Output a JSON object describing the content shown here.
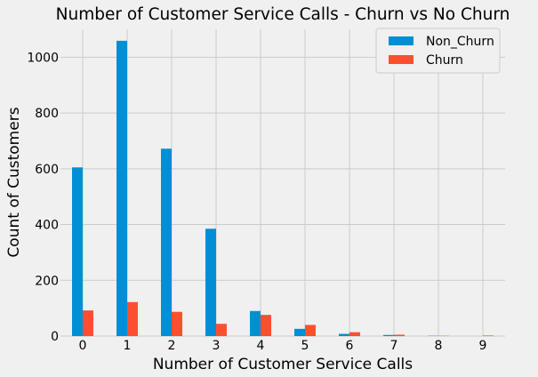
{
  "chart_data": {
    "type": "bar",
    "title": "Number of Customer Service Calls - Churn vs No Churn",
    "xlabel": "Number of Customer Service Calls",
    "ylabel": "Count of Customers",
    "categories": [
      "0",
      "1",
      "2",
      "3",
      "4",
      "5",
      "6",
      "7",
      "8",
      "9"
    ],
    "series": [
      {
        "name": "Non_Churn",
        "color": "#008fd5",
        "values": [
          605,
          1059,
          672,
          385,
          90,
          26,
          8,
          4,
          1,
          0
        ]
      },
      {
        "name": "Churn",
        "color": "#fc4f30",
        "values": [
          92,
          122,
          87,
          44,
          76,
          40,
          14,
          5,
          1,
          2
        ]
      }
    ],
    "ylim": [
      0,
      1100
    ],
    "yticks": [
      0,
      200,
      400,
      600,
      800,
      1000
    ],
    "grid": true,
    "legend_position": "top-right"
  }
}
